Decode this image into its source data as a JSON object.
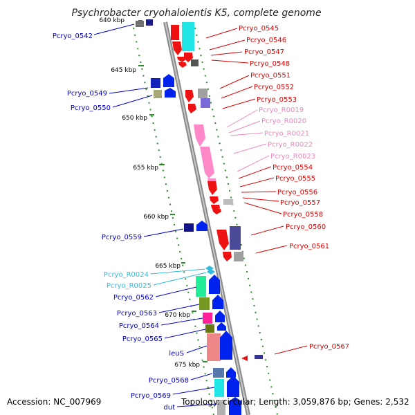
{
  "title": "Psychrobacter cryohalolentis K5, complete genome",
  "accession": "Accession: NC_007969",
  "topology": "Topology: circular; Length: 3,059,876 bp; Genes: 2,532",
  "colors": {
    "backbone": "#8a8a8a",
    "tick": "#2b8a2b",
    "minus_label": "#0000cc",
    "plus_label": "#dd0000",
    "rna_label": "#ee88bb",
    "trna_label": "#33bbdd"
  },
  "kbp_labels": [
    "640 kbp",
    "645 kbp",
    "650 kbp",
    "655 kbp",
    "660 kbp",
    "665 kbp",
    "670 kbp",
    "675 kbp"
  ],
  "genes_left": [
    {
      "label": "Pcryo_0542",
      "color": "#0000cc"
    },
    {
      "label": "Pcryo_0549",
      "color": "#0000cc"
    },
    {
      "label": "Pcryo_0550",
      "color": "#0000cc"
    },
    {
      "label": "Pcryo_0559",
      "color": "#0000cc"
    },
    {
      "label": "Pcryo_R0024",
      "color": "#33bbdd"
    },
    {
      "label": "Pcryo_R0025",
      "color": "#33bbdd"
    },
    {
      "label": "Pcryo_0562",
      "color": "#0000cc"
    },
    {
      "label": "Pcryo_0563",
      "color": "#0000cc"
    },
    {
      "label": "Pcryo_0564",
      "color": "#0000cc"
    },
    {
      "label": "Pcryo_0565",
      "color": "#0000cc"
    },
    {
      "label": "leuS",
      "color": "#0000cc"
    },
    {
      "label": "Pcryo_0568",
      "color": "#0000cc"
    },
    {
      "label": "Pcryo_0569",
      "color": "#0000cc"
    },
    {
      "label": "dut",
      "color": "#0000cc"
    }
  ],
  "genes_right": [
    {
      "label": "Pcryo_0545",
      "color": "#dd0000"
    },
    {
      "label": "Pcryo_0546",
      "color": "#dd0000"
    },
    {
      "label": "Pcryo_0547",
      "color": "#dd0000"
    },
    {
      "label": "Pcryo_0548",
      "color": "#dd0000"
    },
    {
      "label": "Pcryo_0551",
      "color": "#dd0000"
    },
    {
      "label": "Pcryo_0552",
      "color": "#dd0000"
    },
    {
      "label": "Pcryo_0553",
      "color": "#dd0000"
    },
    {
      "label": "Pcryo_R0019",
      "color": "#ee88bb"
    },
    {
      "label": "Pcryo_R0020",
      "color": "#ee88bb"
    },
    {
      "label": "Pcryo_R0021",
      "color": "#ee88bb"
    },
    {
      "label": "Pcryo_R0022",
      "color": "#ee88bb"
    },
    {
      "label": "Pcryo_R0023",
      "color": "#ee88bb"
    },
    {
      "label": "Pcryo_0554",
      "color": "#dd0000"
    },
    {
      "label": "Pcryo_0555",
      "color": "#dd0000"
    },
    {
      "label": "Pcryo_0556",
      "color": "#dd0000"
    },
    {
      "label": "Pcryo_0557",
      "color": "#dd0000"
    },
    {
      "label": "Pcryo_0558",
      "color": "#dd0000"
    },
    {
      "label": "Pcryo_0560",
      "color": "#dd0000"
    },
    {
      "label": "Pcryo_0561",
      "color": "#dd0000"
    },
    {
      "label": "Pcryo_0567",
      "color": "#dd0000"
    }
  ]
}
